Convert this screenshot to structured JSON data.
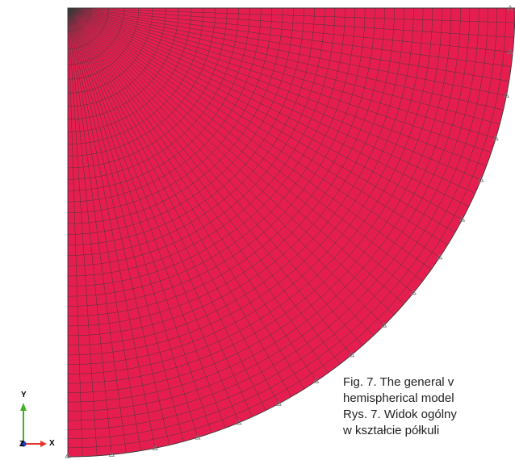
{
  "colors": {
    "mesh_fill": "#e61e4f",
    "mesh_line": "#3a3a3a",
    "boundary_marker": "#777777",
    "axis_x": "#e6342a",
    "axis_y": "#43b02a",
    "axis_z": "#1f3fbf"
  },
  "triad": {
    "x_label": "X",
    "y_label": "Y",
    "z_label": "Z"
  },
  "caption": {
    "line1": "Fig. 7. The general v",
    "line2": "hemispherical model",
    "line3": "Rys. 7. Widok ogólny",
    "line4": "w kształcie półkuli"
  }
}
